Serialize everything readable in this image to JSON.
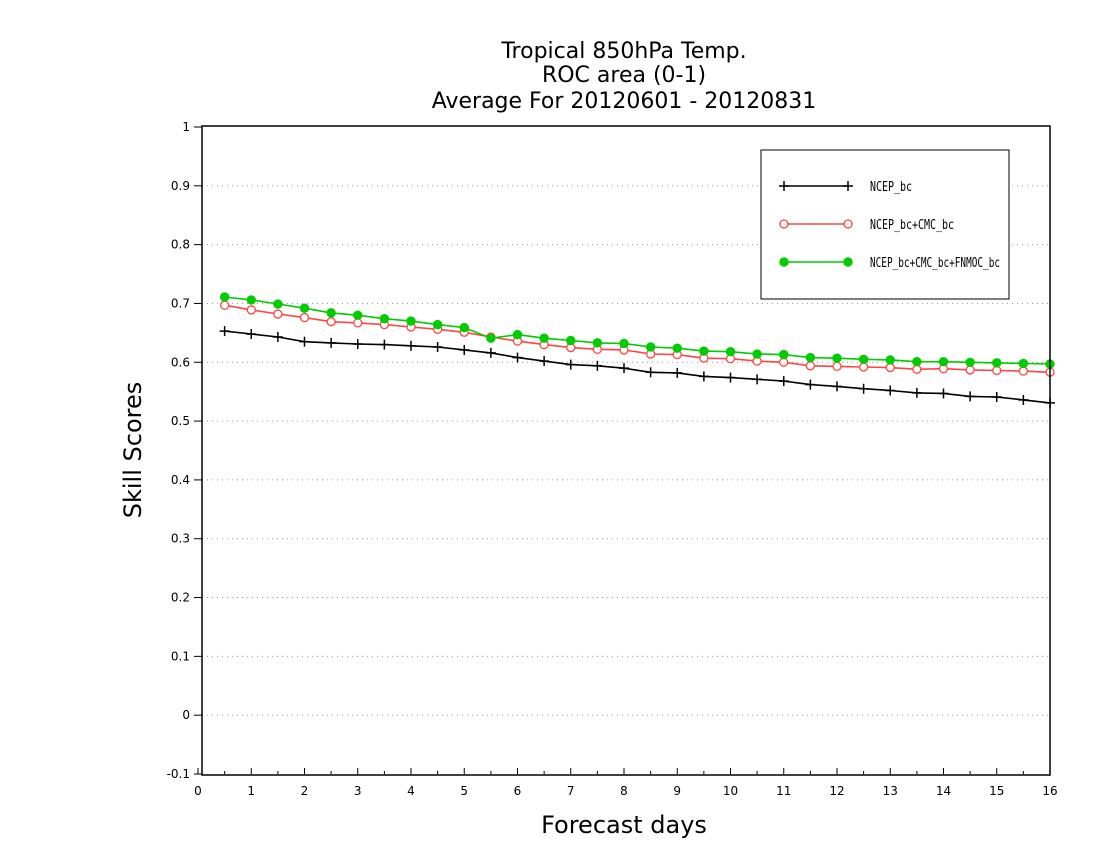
{
  "chart_data": {
    "type": "line",
    "title": [
      "Tropical 850hPa Temp.",
      "ROC area (0-1)",
      "Average For 20120601 - 20120831"
    ],
    "xlabel": "Forecast days",
    "ylabel": "Skill Scores",
    "xlim": [
      0,
      16
    ],
    "ylim": [
      -0.1,
      1
    ],
    "xticks": [
      "0",
      "1",
      "2",
      "3",
      "4",
      "5",
      "6",
      "7",
      "8",
      "9",
      "10",
      "11",
      "12",
      "13",
      "14",
      "15",
      "16"
    ],
    "yticks": [
      "-0.1",
      "0",
      "0.1",
      "0.2",
      "0.3",
      "0.4",
      "0.5",
      "0.6",
      "0.7",
      "0.8",
      "0.9",
      "1"
    ],
    "grid": "horizontal dotted",
    "legend_position": "top-right",
    "x": [
      0.5,
      1,
      1.5,
      2,
      2.5,
      3,
      3.5,
      4,
      4.5,
      5,
      5.5,
      6,
      6.5,
      7,
      7.5,
      8,
      8.5,
      9,
      9.5,
      10,
      10.5,
      11,
      11.5,
      12,
      12.5,
      13,
      13.5,
      14,
      14.5,
      15,
      15.5,
      16
    ],
    "series": [
      {
        "name": "NCEP_bc",
        "color": "#000000",
        "marker": "plus",
        "values": [
          0.653,
          0.648,
          0.643,
          0.635,
          0.633,
          0.631,
          0.63,
          0.628,
          0.626,
          0.621,
          0.616,
          0.608,
          0.602,
          0.596,
          0.594,
          0.59,
          0.583,
          0.582,
          0.576,
          0.574,
          0.571,
          0.568,
          0.562,
          0.559,
          0.555,
          0.552,
          0.548,
          0.547,
          0.542,
          0.541,
          0.536,
          0.531
        ]
      },
      {
        "name": "NCEP_bc+CMC_bc",
        "color": "#ff4444",
        "marker": "open-circle",
        "values": [
          0.697,
          0.689,
          0.682,
          0.676,
          0.669,
          0.667,
          0.664,
          0.66,
          0.656,
          0.651,
          0.643,
          0.636,
          0.63,
          0.625,
          0.622,
          0.621,
          0.614,
          0.613,
          0.607,
          0.606,
          0.602,
          0.6,
          0.594,
          0.593,
          0.592,
          0.591,
          0.588,
          0.589,
          0.587,
          0.586,
          0.585,
          0.583
        ]
      },
      {
        "name": "NCEP_bc+CMC_bc+FNMOC_bc",
        "color": "#00cc00",
        "marker": "filled-circle",
        "values": [
          0.711,
          0.706,
          0.699,
          0.692,
          0.684,
          0.68,
          0.674,
          0.67,
          0.664,
          0.659,
          0.641,
          0.647,
          0.641,
          0.637,
          0.633,
          0.632,
          0.626,
          0.624,
          0.619,
          0.618,
          0.614,
          0.613,
          0.608,
          0.607,
          0.605,
          0.604,
          0.601,
          0.601,
          0.6,
          0.599,
          0.598,
          0.597
        ]
      }
    ]
  }
}
